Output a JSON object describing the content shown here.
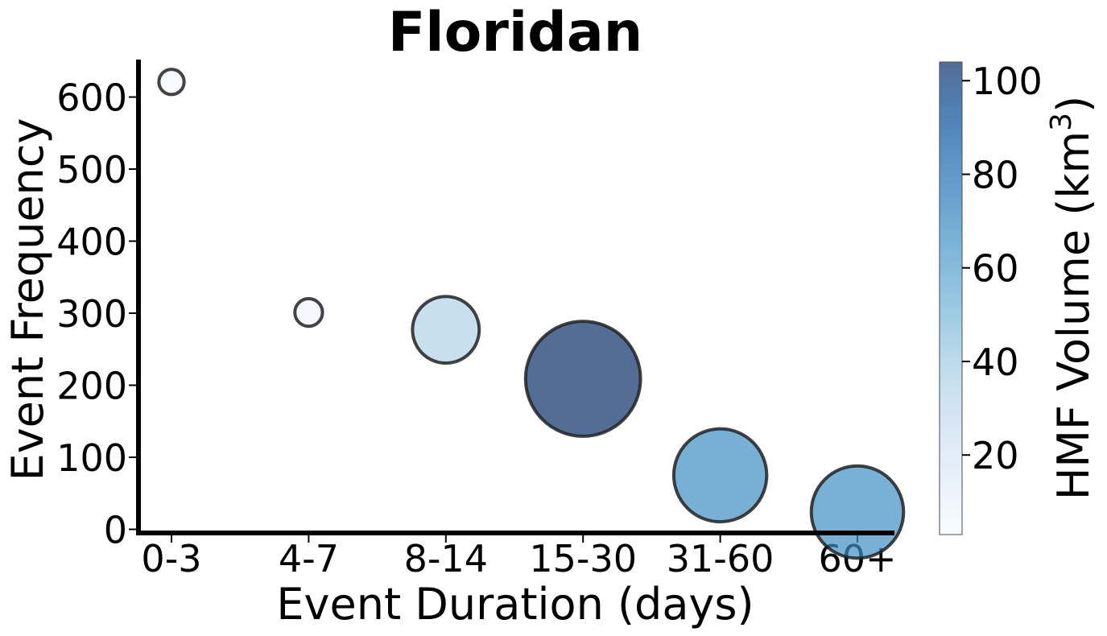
{
  "chart_data": {
    "type": "scatter",
    "title": "Floridan",
    "xlabel": "Event Duration (days)",
    "ylabel": "Event Frequency",
    "categories": [
      "0-3",
      "4-7",
      "8-14",
      "15-30",
      "31-60",
      "60+"
    ],
    "yticks": [
      0,
      100,
      200,
      300,
      400,
      500,
      600
    ],
    "ylim": [
      -5,
      652
    ],
    "points": [
      {
        "category": "0-3",
        "y": 621,
        "volume": 5
      },
      {
        "category": "4-7",
        "y": 301,
        "volume": 6
      },
      {
        "category": "8-14",
        "y": 277,
        "volume": 35
      },
      {
        "category": "15-30",
        "y": 209,
        "volume": 104
      },
      {
        "category": "31-60",
        "y": 75,
        "volume": 68
      },
      {
        "category": "60+",
        "y": 24,
        "volume": 67
      }
    ],
    "colorbar": {
      "label_main": "HMF Volume (km",
      "label_sup": "3",
      "label_close": ")",
      "ticks": [
        20,
        40,
        60,
        80,
        100
      ],
      "range": [
        3,
        104
      ],
      "colormap": "Blues"
    },
    "marker_edge_color": "#222222",
    "grid": false,
    "legend": "none"
  }
}
